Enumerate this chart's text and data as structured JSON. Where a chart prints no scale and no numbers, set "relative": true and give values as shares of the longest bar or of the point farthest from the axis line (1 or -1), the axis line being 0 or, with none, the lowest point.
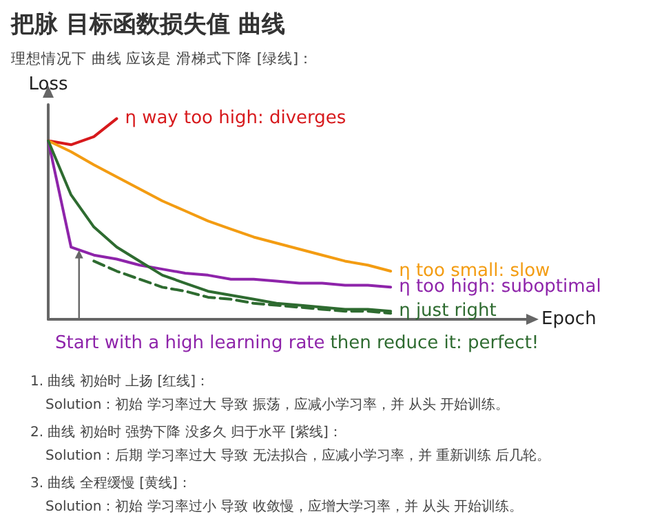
{
  "chart_data": {
    "type": "line",
    "title": "把脉 目标函数损失值 曲线",
    "subtitle": "理想情况下 曲线 应该是 滑梯式下降 [绿线]：",
    "xlabel": "Epoch",
    "ylabel": "Loss",
    "relative": true,
    "marker": "none",
    "categories": [
      null,
      null,
      null,
      null,
      null,
      null,
      null,
      null,
      null,
      null,
      null,
      null,
      null,
      null,
      null,
      null,
      null,
      null,
      null,
      null,
      null,
      null
    ],
    "series": [
      {
        "name": "η way too high: diverges",
        "color": "#d7191c",
        "values": [
          0.89,
          0.87,
          0.91,
          1.0,
          null,
          null,
          null,
          null,
          null,
          null,
          null,
          null,
          null,
          null,
          null,
          null,
          null,
          null,
          null,
          null,
          null,
          null
        ]
      },
      {
        "name": "η too small: slow",
        "color": "#f39c12",
        "values": [
          0.89,
          0.835,
          0.77,
          0.71,
          0.65,
          0.59,
          0.54,
          0.49,
          0.45,
          0.41,
          0.38,
          0.35,
          0.32,
          0.29,
          0.27,
          0.24,
          null,
          null,
          null,
          null,
          null,
          null
        ]
      },
      {
        "name": "η too high: suboptimal",
        "color": "#8e24aa",
        "values": [
          0.89,
          0.36,
          0.32,
          0.3,
          0.27,
          0.25,
          0.23,
          0.22,
          0.2,
          0.2,
          0.19,
          0.18,
          0.18,
          0.17,
          0.17,
          0.16,
          null,
          null,
          null,
          null,
          null,
          null
        ]
      },
      {
        "name": "η just right",
        "color": "#2e6b30",
        "values": [
          0.89,
          0.62,
          0.46,
          0.36,
          0.29,
          0.22,
          0.18,
          0.14,
          0.12,
          0.1,
          0.08,
          0.07,
          0.06,
          0.05,
          0.05,
          0.04,
          null,
          null,
          null,
          null,
          null,
          null
        ]
      },
      {
        "color": "#2e6b30",
        "line_style": "dashed",
        "values": [
          null,
          null,
          0.29,
          0.24,
          0.2,
          0.16,
          0.14,
          0.11,
          0.1,
          0.08,
          0.07,
          0.06,
          0.05,
          0.04,
          0.04,
          0.03,
          null,
          null,
          null,
          null,
          null,
          null
        ]
      }
    ],
    "annotations": [
      "Start with a high learning rate",
      "then reduce it: perfect!",
      "1. 曲线 初始时 上扬 [红线]：",
      "Solution：初始 学习率过大 导致 振荡，应减小学习率，并 从头 开始训练。",
      "2. 曲线 初始时 强势下降 没多久 归于水平 [紫线]：",
      "Solution：后期 学习率过大 导致 无法拟合，应减小学习率，并 重新训练 后几轮。",
      "3. 曲线 全程缓慢 [黄线]：",
      "Solution：初始 学习率过小 导致 收敛慢，应增大学习率，并 从头 开始训练。"
    ]
  }
}
